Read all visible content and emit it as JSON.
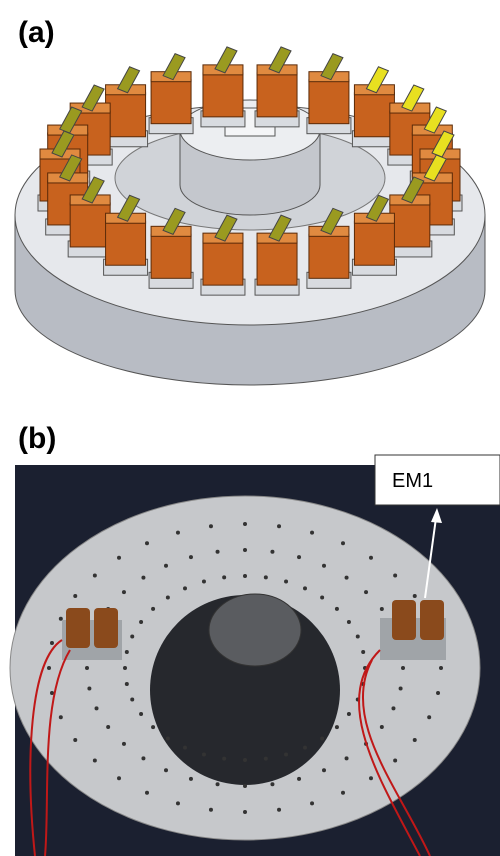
{
  "panels": [
    {
      "label": "(a)"
    },
    {
      "label": "(b)",
      "annotation": "EM1"
    }
  ]
}
